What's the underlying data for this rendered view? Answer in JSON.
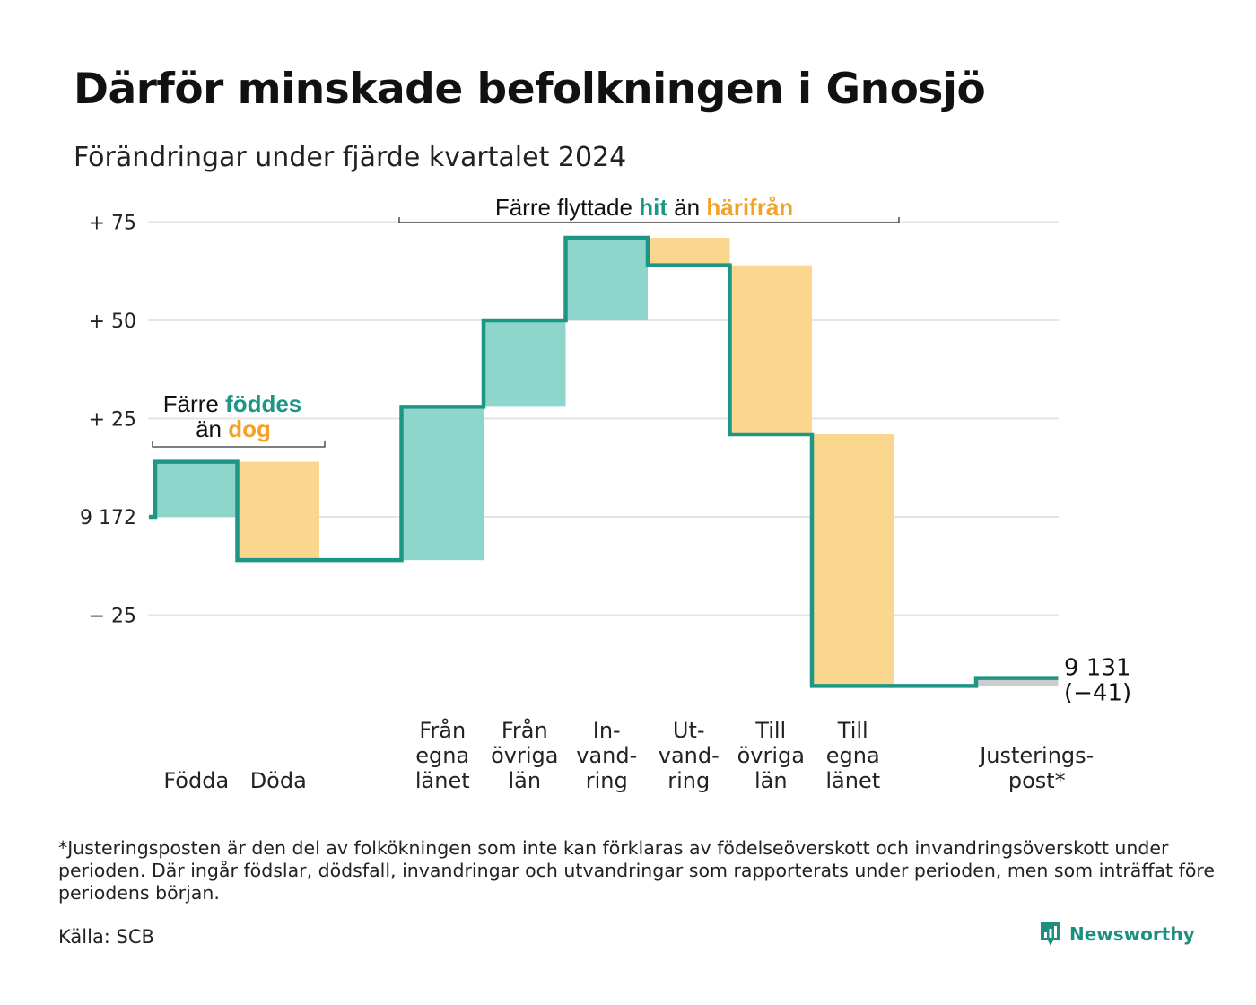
{
  "title": "Därför minskade befolkningen i Gnosjö",
  "subtitle": "Förändringar under fjärde kvartalet 2024",
  "footnote": "*Justeringsposten är den del av folkökningen som inte kan förklaras av födelseöverskott och invandringsöverskott under perioden. Där ingår födslar, dödsfall, invandringar och utvandringar som rapporterats under perioden, men som inträffat före periodens början.",
  "source": "Källa: SCB",
  "brand": {
    "name": "Newsworthy",
    "icon": "newsworthy-logo-icon"
  },
  "colors": {
    "increase": "#8ed5cb",
    "decrease": "#fbd68f",
    "adjustment": "#cccccc",
    "line": "#1e9686",
    "accent_teal": "#1e9686",
    "accent_orange": "#f0a22a",
    "grid": "#e4e4e4"
  },
  "annotations": {
    "births": {
      "line1_prefix": "Färre ",
      "line1_highlight": "föddes",
      "line2_prefix": "än ",
      "line2_highlight": "dog"
    },
    "migration": {
      "prefix": "Färre flyttade ",
      "highlight1": "hit",
      "middle": " än ",
      "highlight2": "härifrån"
    }
  },
  "chart_data": {
    "type": "waterfall",
    "baseline": 9172,
    "baseline_label": "9 172",
    "y_ticks": [
      {
        "value": 75,
        "label": "+ 75"
      },
      {
        "value": 50,
        "label": "+ 50"
      },
      {
        "value": 25,
        "label": "+ 25"
      },
      {
        "value": 0,
        "label": "9 172"
      },
      {
        "value": -25,
        "label": "− 25"
      }
    ],
    "ylim": [
      -45,
      82
    ],
    "steps": [
      {
        "label": [
          "Födda"
        ],
        "change": 14,
        "kind": "increase"
      },
      {
        "label": [
          "Döda"
        ],
        "change": -25,
        "kind": "decrease"
      },
      {
        "label": [],
        "change": 0,
        "kind": "gap"
      },
      {
        "label": [
          "Från",
          "egna",
          "länet"
        ],
        "change": 39,
        "kind": "increase"
      },
      {
        "label": [
          "Från",
          "övriga",
          "län"
        ],
        "change": 22,
        "kind": "increase"
      },
      {
        "label": [
          "In-",
          "vand-",
          "ring"
        ],
        "change": 21,
        "kind": "increase"
      },
      {
        "label": [
          "Ut-",
          "vand-",
          "ring"
        ],
        "change": -7,
        "kind": "decrease"
      },
      {
        "label": [
          "Till",
          "övriga",
          "län"
        ],
        "change": -43,
        "kind": "decrease"
      },
      {
        "label": [
          "Till",
          "egna",
          "länet"
        ],
        "change": -64,
        "kind": "decrease"
      },
      {
        "label": [],
        "change": 0,
        "kind": "gap"
      },
      {
        "label": [
          "Justerings-",
          "post*"
        ],
        "change": 2,
        "kind": "adjustment"
      }
    ],
    "end_value_label": "9 131",
    "end_change_label": "(−41)",
    "grid": true
  }
}
